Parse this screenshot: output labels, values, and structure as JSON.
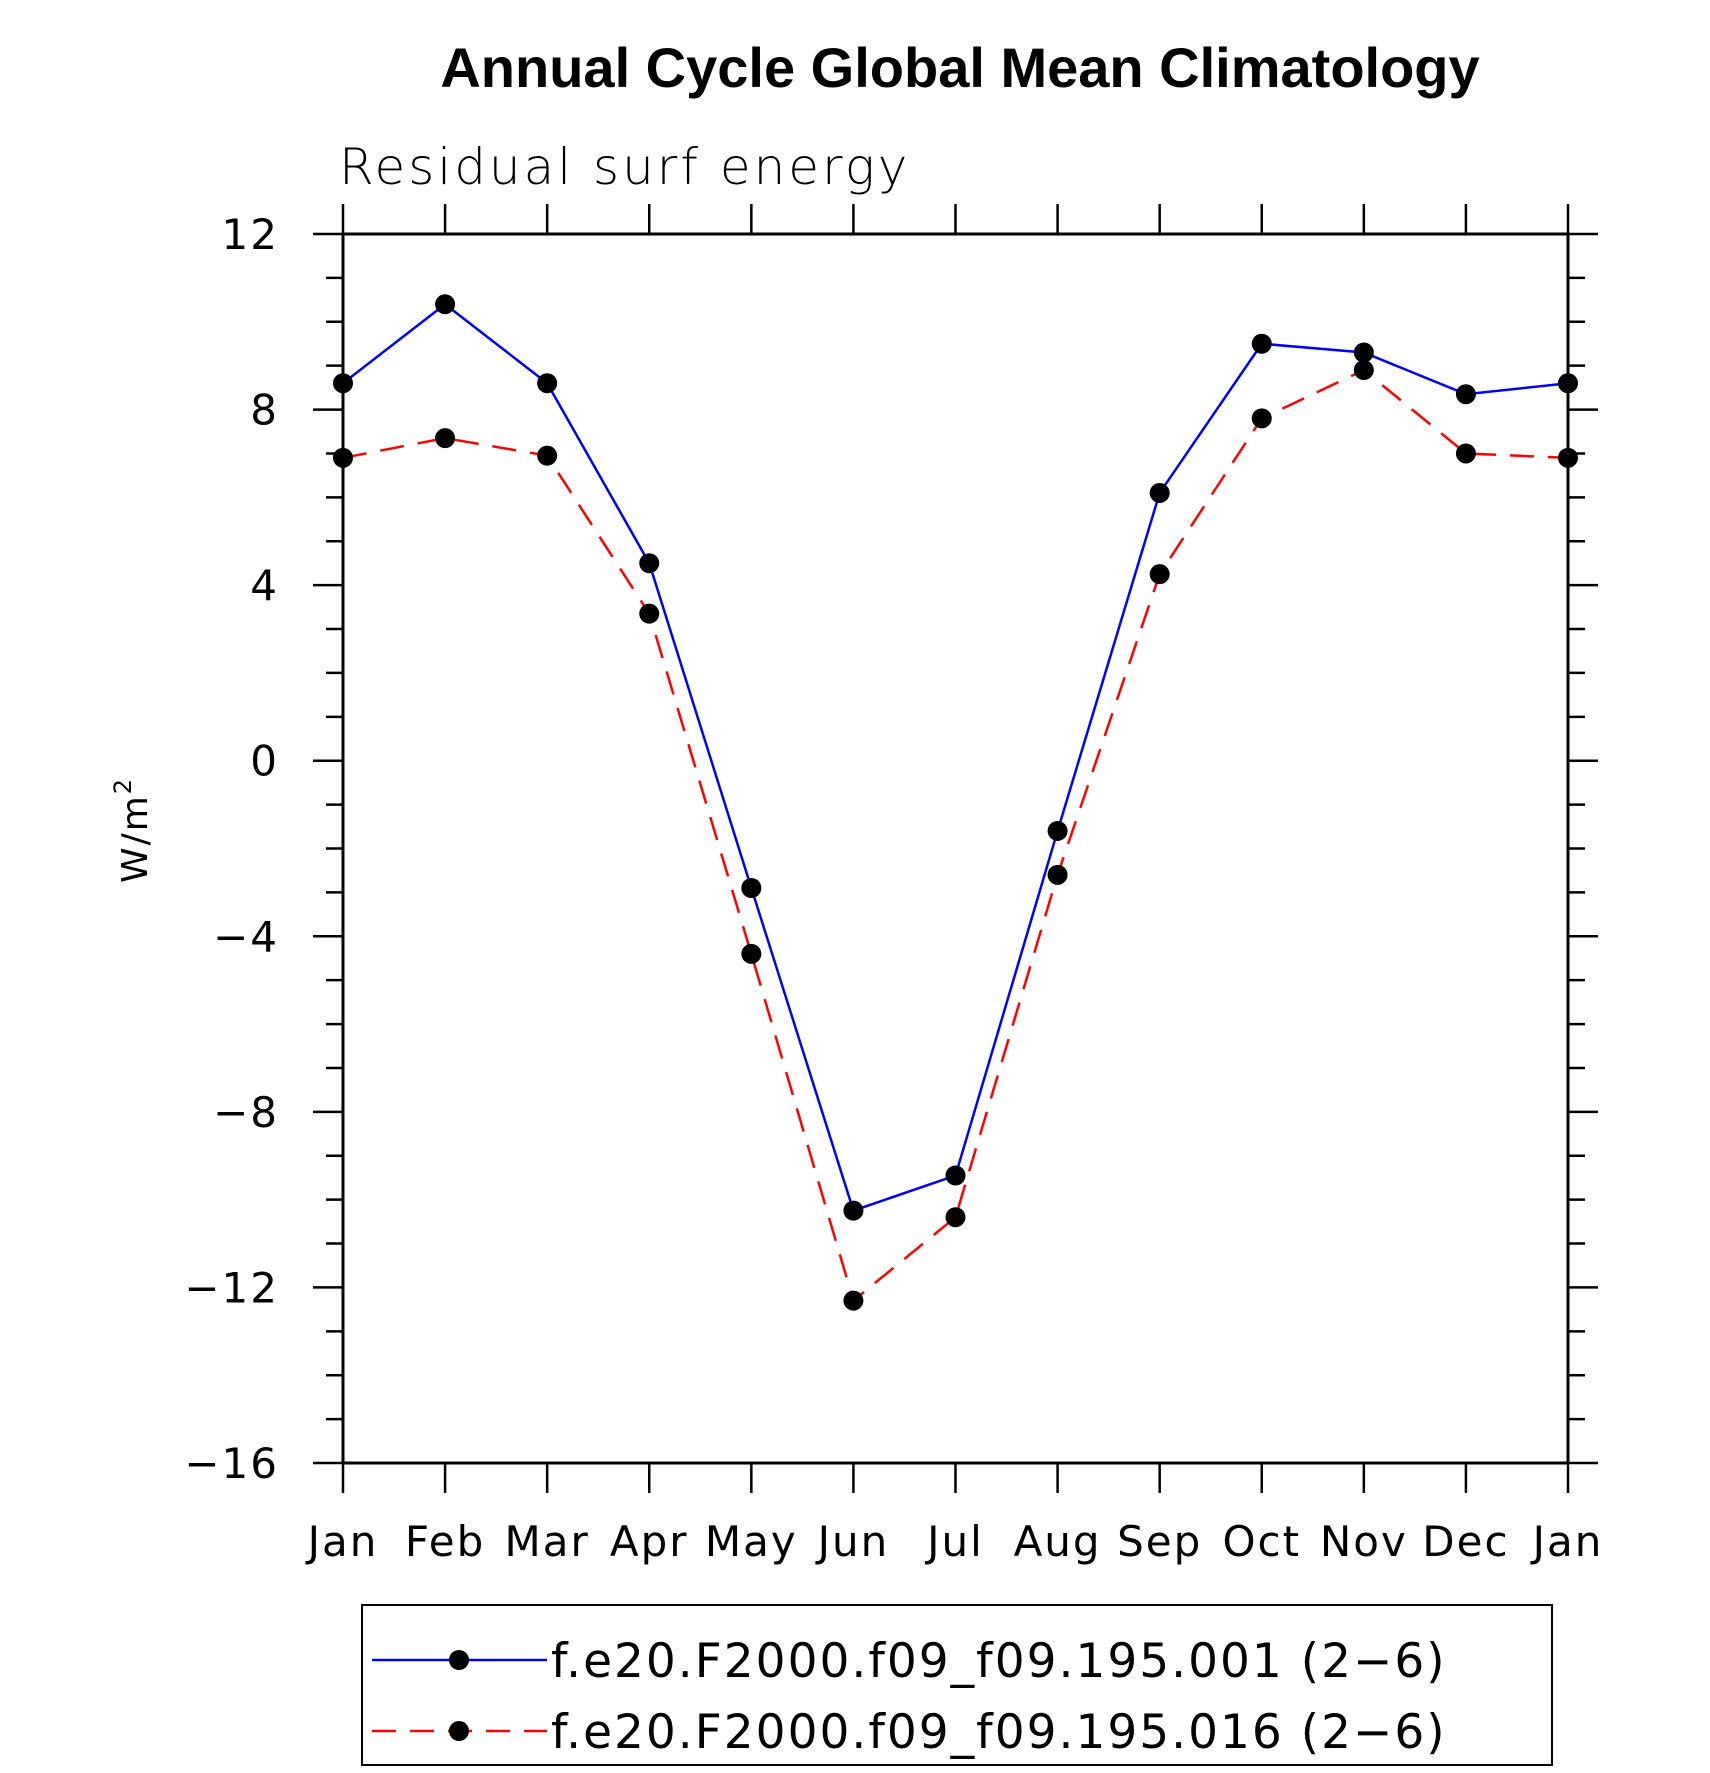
{
  "chart_data": {
    "type": "line",
    "title": "Annual Cycle Global Mean Climatology",
    "subtitle": "Residual surf energy",
    "xlabel": "",
    "ylabel": "W/m",
    "ylabel_superscript": "2",
    "categories": [
      "Jan",
      "Feb",
      "Mar",
      "Apr",
      "May",
      "Jun",
      "Jul",
      "Aug",
      "Sep",
      "Oct",
      "Nov",
      "Dec",
      "Jan"
    ],
    "ylim": [
      -16,
      12
    ],
    "yticks": [
      12,
      8,
      4,
      0,
      -4,
      -8,
      -12,
      -16
    ],
    "ytick_labels": [
      "12",
      "8",
      "4",
      "0",
      "−4",
      "−8",
      "−12",
      "−16"
    ],
    "grid": false,
    "legend_position": "bottom",
    "series": [
      {
        "name": "f.e20.F2000.f09_f09.195.001 (2−6)",
        "color": "#0000ff",
        "dash": "solid",
        "marker": "filled-circle",
        "values": [
          8.6,
          10.4,
          8.6,
          4.5,
          -2.9,
          -10.25,
          -9.45,
          -1.6,
          6.1,
          9.5,
          9.3,
          8.35,
          8.6
        ]
      },
      {
        "name": "f.e20.F2000.f09_f09.195.016 (2−6)",
        "color": "#ff0000",
        "dash": "dashed",
        "marker": "filled-circle",
        "values": [
          6.9,
          7.35,
          6.95,
          3.35,
          -4.4,
          -12.3,
          -10.4,
          -2.6,
          4.25,
          7.8,
          8.9,
          7.0,
          6.9
        ]
      }
    ]
  }
}
